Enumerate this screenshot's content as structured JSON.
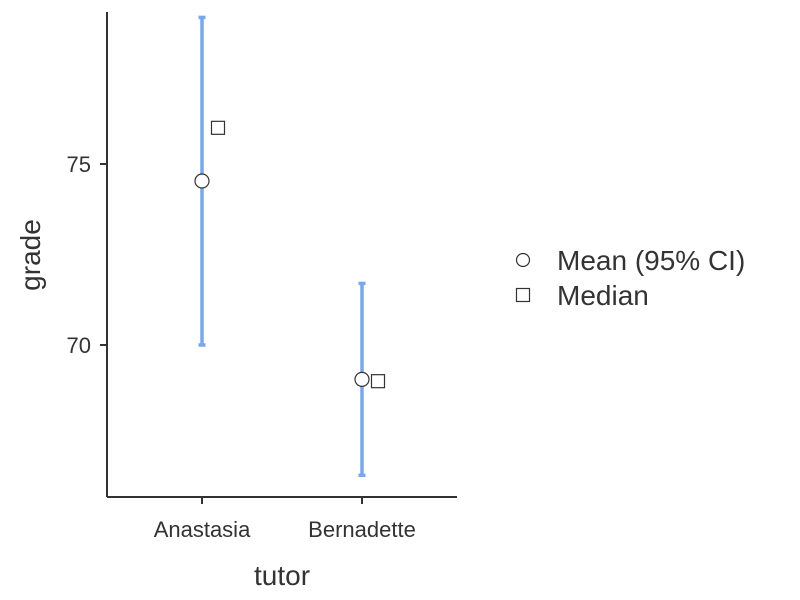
{
  "chart_data": {
    "type": "scatter",
    "xlabel": "tutor",
    "ylabel": "grade",
    "categories": [
      "Anastasia",
      "Bernadette"
    ],
    "y_ticks": [
      70,
      75
    ],
    "y_tick_labels": [
      "70",
      "75"
    ],
    "ylim": [
      65.8,
      79.2
    ],
    "grid": false,
    "series": [
      {
        "name": "Mean (95% CI)",
        "marker": "circle",
        "values": [
          74.53,
          69.05
        ],
        "ci_low": [
          70.0,
          66.4
        ],
        "ci_high": [
          79.05,
          71.7
        ]
      },
      {
        "name": "Median",
        "marker": "square",
        "values": [
          76.0,
          69.0
        ]
      }
    ],
    "legend_position": "right",
    "colors": {
      "error_bar": "#7BA7EA",
      "marker_fill": "#ffffff",
      "marker_stroke": "#333333",
      "axis": "#333333"
    }
  }
}
